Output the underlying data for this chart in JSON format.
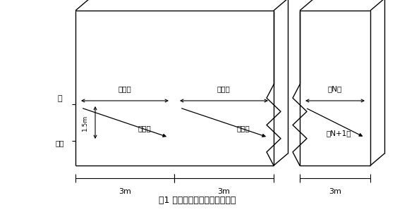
{
  "bg_color": "#ffffff",
  "line_color": "#000000",
  "title": "图1 超长混凝土墙平整度测量图",
  "label_qiang": "墙",
  "label_dimian": "地面",
  "label_1_5m": "1.5m",
  "label_3m_1": "3m",
  "label_3m_2": "3m",
  "label_3m_3": "3m",
  "label_chi1": "第一尺",
  "label_chi2": "第二尺",
  "label_chi3": "第三尺",
  "label_chi4": "第四尺",
  "label_chiN": "第N尺",
  "label_chiN1": "第N+1尺",
  "font_size_title": 9,
  "font_size_label": 8,
  "font_size_small": 7
}
